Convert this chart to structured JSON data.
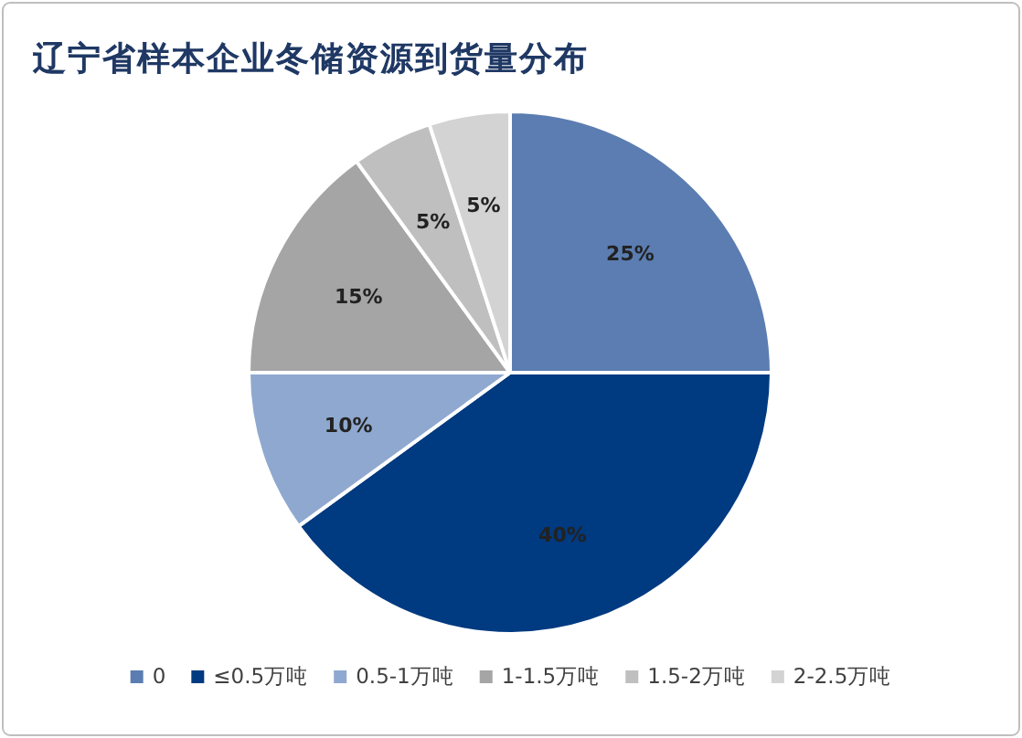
{
  "chart_data": {
    "type": "pie",
    "title": "辽宁省样本企业冬储资源到货量分布",
    "categories": [
      "0",
      "≤0.5万吨",
      "0.5-1万吨",
      "1-1.5万吨",
      "1.5-2万吨",
      "2-2.5万吨"
    ],
    "values": [
      25,
      40,
      10,
      15,
      5,
      5
    ],
    "value_labels": [
      "25%",
      "40%",
      "10%",
      "15%",
      "5%",
      "5%"
    ],
    "colors": [
      "#5b7db1",
      "#003a80",
      "#8fa8cf",
      "#a5a5a5",
      "#bfbfbf",
      "#d3d3d3"
    ],
    "legend": "bottom"
  }
}
